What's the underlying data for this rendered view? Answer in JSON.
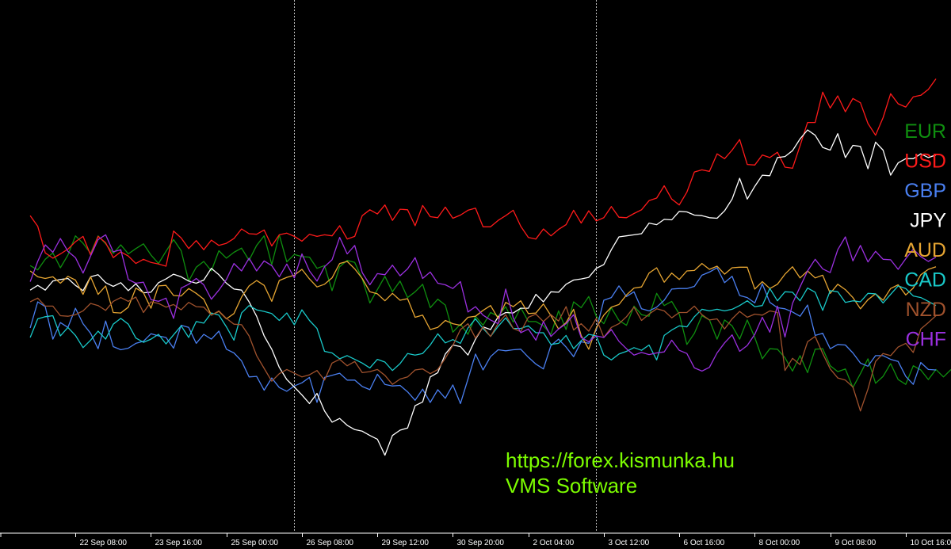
{
  "watermark": {
    "url": "https://forex.kismunka.hu",
    "brand": "VMS Software"
  },
  "chart_data": {
    "type": "line",
    "title": "",
    "xlabel": "",
    "ylabel": "",
    "background": "#000000",
    "grid": false,
    "legend_position": "right",
    "xlim": [
      -4,
      122
    ],
    "ylim": [
      0,
      100
    ],
    "x_ticks": [
      {
        "x": 6,
        "label": "22 Sep 08:00"
      },
      {
        "x": 16,
        "label": "23 Sep 16:00"
      },
      {
        "x": 26,
        "label": "25 Sep 00:00"
      },
      {
        "x": 36,
        "label": "26 Sep 08:00"
      },
      {
        "x": 46,
        "label": "29 Sep 12:00"
      },
      {
        "x": 56,
        "label": "30 Sep 20:00"
      },
      {
        "x": 66,
        "label": "2 Oct 04:00"
      },
      {
        "x": 76,
        "label": "3 Oct 12:00"
      },
      {
        "x": 86,
        "label": "6 Oct 16:00"
      },
      {
        "x": 96,
        "label": "8 Oct 00:00"
      },
      {
        "x": 106,
        "label": "9 Oct 08:00"
      },
      {
        "x": 116,
        "label": "10 Oct 16:00"
      }
    ],
    "period_separators": [
      35,
      75
    ],
    "series": [
      {
        "name": "EUR",
        "color": "#0f8f0f",
        "values": [
          50.1,
          49.3,
          51.3,
          52.5,
          49.7,
          52.1,
          55.7,
          54.3,
          52.4,
          55.7,
          54.2,
          52.4,
          54,
          52.3,
          53.3,
          54.2,
          52.1,
          50.5,
          52.8,
          55,
          52.9,
          47.2,
          49.8,
          50.9,
          49.1,
          52.9,
          51.5,
          52.6,
          53.4,
          51.1,
          53.9,
          55.7,
          50.3,
          55.9,
          50.8,
          52.2,
          51.8,
          51.7,
          49.6,
          50.1,
          45.4,
          49.9,
          51.1,
          50.7,
          47.6,
          43.1,
          45.6,
          48.1,
          45.2,
          47.2,
          44.1,
          45.2,
          46.6,
          42.2,
          43.8,
          42.7,
          37.6,
          39.1,
          37.2,
          40.6,
          38.9,
          41.3,
          40.6,
          42.4,
          39.5,
          42.2,
          39.6,
          39.6,
          38.8,
          37.2,
          41.6,
          38.1,
          43.3,
          42.2,
          44.3,
          40.6,
          39.2,
          42.2,
          39.8,
          38.9,
          42.5,
          40.9,
          40.6,
          44.9,
          42.6,
          43.4,
          41,
          35.3,
          37.4,
          40.7,
          39.9,
          36.3,
          39.9,
          38.8,
          36.3,
          39.9,
          36.6,
          32.6,
          34.5,
          34.4,
          32.8,
          30.3,
          33.2,
          30,
          34.4,
          34.5,
          31.3,
          30.2,
          30.7,
          27.2,
          29.8,
          32.6,
          28,
          29.3,
          31.7,
          28.7,
          27.8,
          31.3,
          30.5,
          28.7,
          30.6,
          29.2,
          30.6
        ]
      },
      {
        "name": "USD",
        "color": "#ff1a1a",
        "values": [
          59.5,
          57.5,
          52.5,
          51.5,
          52.3,
          53.2,
          54.6,
          55.6,
          52.1,
          55.6,
          54.4,
          51.6,
          52.7,
          51.9,
          50.5,
          51.3,
          50.7,
          50.4,
          50,
          56.6,
          55.3,
          53.3,
          54.8,
          53.1,
          54.9,
          53.9,
          54.3,
          55.2,
          57,
          56.1,
          56,
          56.8,
          53.8,
          55.9,
          56.2,
          55.6,
          54.7,
          56,
          55.6,
          55.9,
          55.7,
          57.6,
          55.1,
          55.6,
          59.5,
          60.6,
          59.8,
          61.5,
          58.6,
          60.7,
          60.6,
          57.6,
          61.4,
          59.3,
          59.1,
          61.1,
          59,
          59.6,
          60.5,
          60.9,
          57.4,
          57.4,
          58.6,
          59.5,
          60.5,
          57.5,
          55.4,
          55.1,
          57,
          55.7,
          56.9,
          57.8,
          60.5,
          58.1,
          60.4,
          58.5,
          59.1,
          61.2,
          59.2,
          59.1,
          59.9,
          60.6,
          62.3,
          62.8,
          65.1,
          62.6,
          61.5,
          63.9,
          67.7,
          68.1,
          67.8,
          71.1,
          70.2,
          71.8,
          73.8,
          69.1,
          69,
          70.9,
          70.4,
          71.4,
          68.6,
          68.4,
          72.6,
          77,
          77,
          82.7,
          79.7,
          82,
          79,
          81.5,
          80.7,
          76.8,
          74.6,
          77.9,
          82.4,
          80.5,
          79.9,
          81.8,
          82.1,
          83.2,
          85.2
        ]
      },
      {
        "name": "GBP",
        "color": "#4a7ff0",
        "values": [
          38.4,
          43.3,
          42.4,
          36.3,
          39.4,
          38.5,
          42.1,
          39.2,
          37.4,
          34.5,
          39.7,
          34.9,
          34.3,
          34.6,
          35.5,
          35.9,
          37.3,
          36.9,
          36.6,
          34.6,
          38.9,
          38.5,
          35.5,
          37.2,
          36.3,
          37.8,
          34.4,
          33.7,
          32.2,
          29.2,
          29.3,
          26.7,
          29,
          27.2,
          26.5,
          27.5,
          28.1,
          29.1,
          24.4,
          29.1,
          29.5,
          29.9,
          28.6,
          28.6,
          27.4,
          26.8,
          29.7,
          27.8,
          27.5,
          27.6,
          26.4,
          24.8,
          26.9,
          24.4,
          26.8,
          25.2,
          27.7,
          24.2,
          28.8,
          33.5,
          30.5,
          33,
          34.3,
          34.1,
          34.3,
          34.4,
          32.9,
          31.6,
          30.7,
          35.1,
          36.3,
          34.8,
          33,
          35.8,
          35.5,
          38,
          43.6,
          44.1,
          46.3,
          44.3,
          45.2,
          42,
          41.6,
          42.3,
          43.6,
          45.7,
          45.8,
          45.8,
          46.2,
          48.3,
          48.9,
          49.7,
          46.9,
          48.1,
          44.5,
          44.1,
          43.1,
          46.7,
          43.2,
          42.2,
          42,
          41.4,
          40.6,
          42.7,
          37,
          37.4,
          34.5,
          35.3,
          35.2,
          33.7,
          31.8,
          31.2,
          33.2,
          33.2,
          32.5,
          32.1,
          29.3,
          27.8,
          31.9,
          30.6,
          30.5
        ]
      },
      {
        "name": "JPY",
        "color": "#ffffff",
        "values": [
          45.5,
          46.4,
          45.5,
          47.2,
          47.5,
          47.7,
          46.4,
          45.4,
          48,
          48.4,
          46.9,
          46.2,
          46.9,
          45.4,
          46.7,
          45,
          45.1,
          46.9,
          47.6,
          48.5,
          48,
          47.2,
          46.8,
          47.4,
          49.6,
          48.4,
          46.8,
          45.7,
          45.5,
          43.3,
          40.6,
          36.9,
          34.4,
          31,
          28.7,
          27.3,
          25.8,
          24.2,
          26.1,
          22.8,
          20.7,
          21.4,
          20.1,
          19.3,
          19,
          18.2,
          17.5,
          14.5,
          18.2,
          19.2,
          19.6,
          23.8,
          24.5,
          29.2,
          30,
          33.5,
          35.2,
          34.9,
          33.3,
          36.3,
          38.6,
          38.1,
          40.5,
          41.3,
          41.2,
          42.1,
          42.1,
          44.7,
          43.3,
          45.2,
          45.1,
          46.6,
          47.4,
          47.6,
          47.9,
          49.6,
          50.3,
          53.1,
          55.5,
          55.7,
          55.9,
          56.1,
          58.1,
          57.8,
          58.8,
          58.7,
          60.3,
          60.2,
          59.6,
          59.5,
          59.1,
          59,
          60.4,
          62.6,
          66.5,
          62.6,
          65,
          67.1,
          67,
          70.4,
          70.6,
          71.7,
          73.9,
          75.6,
          74.6,
          72.3,
          71.8,
          74.9,
          70.4,
          72.7,
          72.5,
          68.3,
          73.3,
          71.8,
          67.1,
          69.4,
          70.2,
          70.2,
          71.1,
          70.4,
          70.9
        ]
      },
      {
        "name": "AUD",
        "color": "#e6a532",
        "values": [
          49.1,
          48,
          47.7,
          48,
          46.8,
          48.1,
          47.4,
          44.7,
          48,
          44.7,
          46.3,
          41.3,
          41.2,
          42.3,
          45.9,
          45,
          42.1,
          46.3,
          46.4,
          44.5,
          44.4,
          45.8,
          44.9,
          43.8,
          40.8,
          41.5,
          40.1,
          41.1,
          44.2,
          46.3,
          47.3,
          46.4,
          43.4,
          47.3,
          47.9,
          48.3,
          49.4,
          47.6,
          46.1,
          46.6,
          47.8,
          50.5,
          50.9,
          49.5,
          47.7,
          45.2,
          44.8,
          43.5,
          44.9,
          43.6,
          43.9,
          40.4,
          40.8,
          38.1,
          38.5,
          39.8,
          39.2,
          38.9,
          40.4,
          40.6,
          41.7,
          42.6,
          40.2,
          43.2,
          42.4,
          43.5,
          41.1,
          41.2,
          42.9,
          40.7,
          38.2,
          39.4,
          41.9,
          37,
          34.4,
          38.4,
          40.8,
          42.3,
          42.8,
          44.6,
          45.9,
          46.1,
          48.7,
          49.7,
          47,
          48.7,
          47.5,
          49.1,
          49.2,
          50.5,
          49.4,
          50,
          48.5,
          49.7,
          49.8,
          49.8,
          45.7,
          47.1,
          45.8,
          46.6,
          48.5,
          49.9,
          47.8,
          49.1,
          47.8,
          48.3,
          44.9,
          46.6,
          45.6,
          44.1,
          42,
          43.7,
          44.8,
          43.6,
          45.8,
          46.5,
          44.6,
          45.9,
          48.4,
          49.4,
          49.9
        ]
      },
      {
        "name": "CAD",
        "color": "#19c9c9",
        "values": [
          36.6,
          40.1,
          40.5,
          40.7,
          36.9,
          38.5,
          37,
          34.7,
          36.1,
          37.8,
          36.3,
          39.1,
          40.2,
          39.1,
          36.5,
          35.7,
          36.3,
          37.2,
          35.4,
          37.1,
          38.8,
          36.6,
          39.6,
          39.3,
          41.2,
          40.8,
          38.6,
          36.1,
          41.2,
          42.6,
          41.8,
          41.5,
          41.1,
          39.8,
          41.2,
          39,
          41.8,
          39.8,
          38.3,
          34,
          33.7,
          32.6,
          33.2,
          32.5,
          31.8,
          30.9,
          32.5,
          32,
          30.4,
          31.7,
          33.6,
          33.3,
          33.6,
          35.2,
          37.3,
          35.6,
          36.2,
          35.5,
          38.4,
          40.1,
          38.3,
          36.8,
          38.7,
          40.3,
          38.3,
          38.3,
          38.8,
          37.5,
          37.5,
          35.3,
          35.5,
          37,
          34.5,
          36,
          37.2,
          36.9,
          33.3,
          32.4,
          33.5,
          34,
          34.7,
          34.2,
          35.2,
          32.4,
          37,
          38,
          38.8,
          38.6,
          40.5,
          41.9,
          41.6,
          41.9,
          41.6,
          41.9,
          42.6,
          43.5,
          42.4,
          42.6,
          45.8,
          43.5,
          45.2,
          45.1,
          43.5,
          45.9,
          45.1,
          41.7,
          45.4,
          45.2,
          43.2,
          43.5,
          43.3,
          44.9,
          44.8,
          43.1,
          44.7,
          46.3,
          45.8,
          44.4,
          44.1,
          43.4,
          42.6
        ]
      },
      {
        "name": "NZD",
        "color": "#a0522d",
        "values": [
          43.3,
          44,
          42.5,
          42.5,
          40.7,
          40.6,
          40.9,
          41.6,
          43,
          42.6,
          41.7,
          43.4,
          44.1,
          43.4,
          44.2,
          41.3,
          43.3,
          43,
          42.3,
          42.8,
          41.8,
          43.2,
          42.4,
          42.3,
          40.8,
          41.6,
          40.2,
          39.1,
          39,
          36.9,
          33.2,
          30.8,
          28.4,
          29.8,
          30.6,
          29.9,
          29.2,
          29.6,
          30.4,
          28.6,
          31.8,
          32.5,
          31.3,
          32.1,
          30,
          30.2,
          30.6,
          29.5,
          27.8,
          28.8,
          29.2,
          30.5,
          30.7,
          29.8,
          30.6,
          32.7,
          35.1,
          38.1,
          39.2,
          36.5,
          38.6,
          36.8,
          39.3,
          40.9,
          38.3,
          37.7,
          40.4,
          41,
          39.6,
          40.9,
          39.7,
          42.4,
          38,
          39.2,
          37.8,
          40.2,
          36.6,
          38.5,
          39.2,
          40.5,
          42.3,
          39.8,
          41,
          42,
          41.6,
          40.3,
          41.3,
          41.3,
          42.5,
          40.9,
          39.9,
          40.1,
          38.2,
          40.1,
          41.5,
          40.4,
          41,
          40.8,
          41.6,
          41.3,
          30.4,
          32.7,
          31.5,
          35.8,
          36.8,
          33.6,
          30.7,
          29,
          28.6,
          27.3,
          22.8,
          26.9,
          32.1,
          33.6,
          33.2,
          34.8,
          35.5,
          33.8,
          38.2,
          39.4,
          40.7
        ]
      },
      {
        "name": "CHF",
        "color": "#9b30e0",
        "values": [
          47.1,
          50.9,
          54,
          52.6,
          55.2,
          52.8,
          51.6,
          48.7,
          51.9,
          55,
          55.9,
          52.7,
          53.1,
          47.5,
          46.8,
          47,
          43.7,
          43.4,
          44,
          40.2,
          45.9,
          46.6,
          47.7,
          46.5,
          43.8,
          45.5,
          47.5,
          50.5,
          49.1,
          51.5,
          49.1,
          51,
          50.1,
          48,
          50.4,
          47.8,
          52.3,
          49.1,
          47.2,
          49.9,
          51.2,
          55.4,
          52.3,
          53.9,
          48.8,
          46.5,
          48.6,
          48.4,
          50.2,
          48.2,
          49.5,
          51.6,
          47.7,
          48.9,
          46.8,
          46.5,
          45.8,
          47.1,
          41.4,
          42.4,
          40.8,
          39.9,
          39.2,
          45.7,
          40.3,
          37.5,
          38.2,
          36.1,
          39.6,
          36.8,
          38.2,
          39.2,
          40.9,
          36.6,
          35.8,
          36.9,
          36.6,
          38.1,
          35.9,
          34.5,
          33.3,
          33.8,
          33.4,
          33.7,
          33.9,
          36.1,
          34.2,
          33.6,
          30.9,
          30.3,
          31,
          33.7,
          35.6,
          37.1,
          34,
          35.1,
          37.2,
          40.4,
          37.6,
          42.5,
          36.7,
          43,
          46.1,
          49.1,
          51.3,
          49.5,
          48.8,
          53.1,
          55.5,
          51,
          53.9,
          50.8,
          52.8,
          51.3,
          51.2,
          49.4,
          51.4,
          53.2,
          51.8,
          50.9,
          51.7
        ]
      }
    ]
  }
}
